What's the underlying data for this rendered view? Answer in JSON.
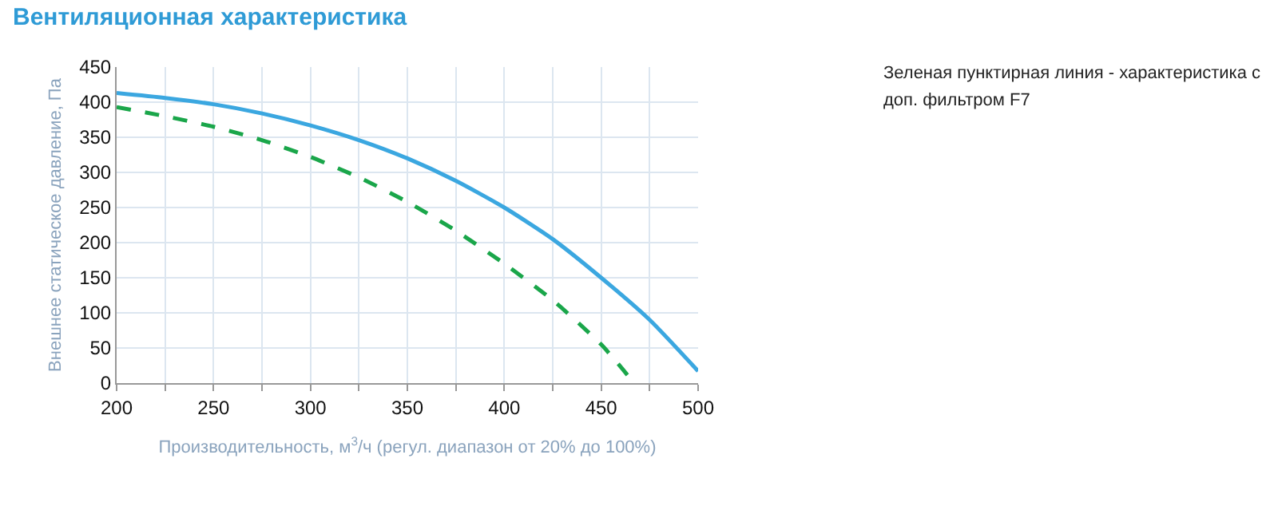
{
  "chart_data": {
    "type": "line",
    "title": "Вентиляционная характеристика",
    "xlabel": "Производительность, м$^{3}$/ч (регул. диапазон от 20% до 100%)",
    "ylabel": "Внешнее статическое давление, Па",
    "annotations": [
      "Зеленая пунктирная линия - характеристика с доп. фильтром F7"
    ],
    "series": [
      {
        "color": "#3ba7e0",
        "line_style": "solid",
        "x": [
          200,
          225,
          250,
          275,
          300,
          325,
          350,
          375,
          400,
          425,
          450,
          475,
          500
        ],
        "values": [
          413,
          406,
          397,
          384,
          367,
          346,
          320,
          288,
          250,
          205,
          150,
          90,
          17
        ]
      },
      {
        "color": "#1aa64a",
        "line_style": "dashed",
        "x": [
          200,
          225,
          250,
          275,
          300,
          325,
          350,
          375,
          400,
          425,
          450,
          467
        ],
        "values": [
          393,
          380,
          365,
          346,
          322,
          293,
          258,
          217,
          170,
          118,
          55,
          0
        ]
      }
    ],
    "xlim": [
      200,
      500
    ],
    "xticks": [
      200,
      {
        "value": 225,
        "label": null
      },
      250,
      {
        "value": 275,
        "label": null
      },
      300,
      {
        "value": 325,
        "label": null
      },
      350,
      {
        "value": 375,
        "label": null
      },
      400,
      {
        "value": 425,
        "label": null
      },
      450,
      {
        "value": 475,
        "label": null
      },
      500
    ],
    "ylim": [
      0,
      450
    ],
    "yticks": [
      0,
      50,
      100,
      150,
      200,
      250,
      300,
      350,
      400,
      450
    ],
    "grid": true,
    "marker": "none"
  }
}
